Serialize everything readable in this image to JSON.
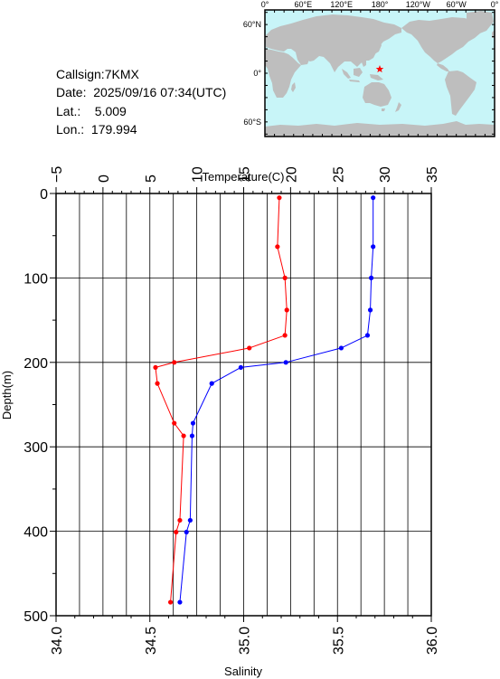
{
  "info": {
    "callsign": "Callsign:7KMX",
    "date": "Date:  2025/09/16 07:34(UTC)",
    "lat": "Lat.:    5.009",
    "lon": "Lon.:  179.994"
  },
  "map": {
    "top_labels": [
      "0°",
      "60°E",
      "120°E",
      "180°",
      "120°W",
      "60°W",
      "0°"
    ],
    "left_labels": [
      "60°N",
      "0°",
      "60°S"
    ],
    "ocean_color": "#c8f5f8",
    "land_color": "#bebebe",
    "marker_color": "#ff0000",
    "marker": {
      "lon": 179.994,
      "lat": 5.009
    }
  },
  "chart_data": {
    "type": "line",
    "y_axis": {
      "label": "Depth(m)",
      "range": [
        0,
        500
      ],
      "ticks": [
        "0",
        "100",
        "200",
        "300",
        "400",
        "500"
      ],
      "inverted": true
    },
    "x_top_axis": {
      "label": "Temperature(C)",
      "range": [
        -5,
        35
      ],
      "ticks": [
        "−5",
        "0",
        "5",
        "10",
        "15",
        "20",
        "25",
        "30",
        "35"
      ]
    },
    "x_bottom_axis": {
      "label": "Salinity",
      "range": [
        34.0,
        36.0
      ],
      "ticks": [
        "34.0",
        "34.5",
        "35.0",
        "35.5",
        "36.0"
      ]
    },
    "grid": true,
    "series": [
      {
        "axis": "temperature",
        "color": "#0000ff",
        "points": [
          {
            "value": 28.8,
            "depth": 5
          },
          {
            "value": 28.8,
            "depth": 63
          },
          {
            "value": 28.6,
            "depth": 100
          },
          {
            "value": 28.5,
            "depth": 138
          },
          {
            "value": 28.2,
            "depth": 168
          },
          {
            "value": 25.4,
            "depth": 183
          },
          {
            "value": 19.5,
            "depth": 200
          },
          {
            "value": 14.7,
            "depth": 206
          },
          {
            "value": 11.6,
            "depth": 225
          },
          {
            "value": 9.6,
            "depth": 272
          },
          {
            "value": 9.5,
            "depth": 287
          },
          {
            "value": 9.3,
            "depth": 387
          },
          {
            "value": 8.9,
            "depth": 401
          },
          {
            "value": 8.2,
            "depth": 484
          }
        ]
      },
      {
        "axis": "salinity",
        "color": "#ff0000",
        "points": [
          {
            "value": 35.19,
            "depth": 5
          },
          {
            "value": 35.18,
            "depth": 63
          },
          {
            "value": 35.22,
            "depth": 100
          },
          {
            "value": 35.23,
            "depth": 138
          },
          {
            "value": 35.22,
            "depth": 168
          },
          {
            "value": 35.03,
            "depth": 183
          },
          {
            "value": 34.63,
            "depth": 200
          },
          {
            "value": 34.53,
            "depth": 206
          },
          {
            "value": 34.54,
            "depth": 225
          },
          {
            "value": 34.63,
            "depth": 272
          },
          {
            "value": 34.68,
            "depth": 287
          },
          {
            "value": 34.66,
            "depth": 387
          },
          {
            "value": 34.64,
            "depth": 401
          },
          {
            "value": 34.61,
            "depth": 484
          }
        ]
      }
    ]
  }
}
